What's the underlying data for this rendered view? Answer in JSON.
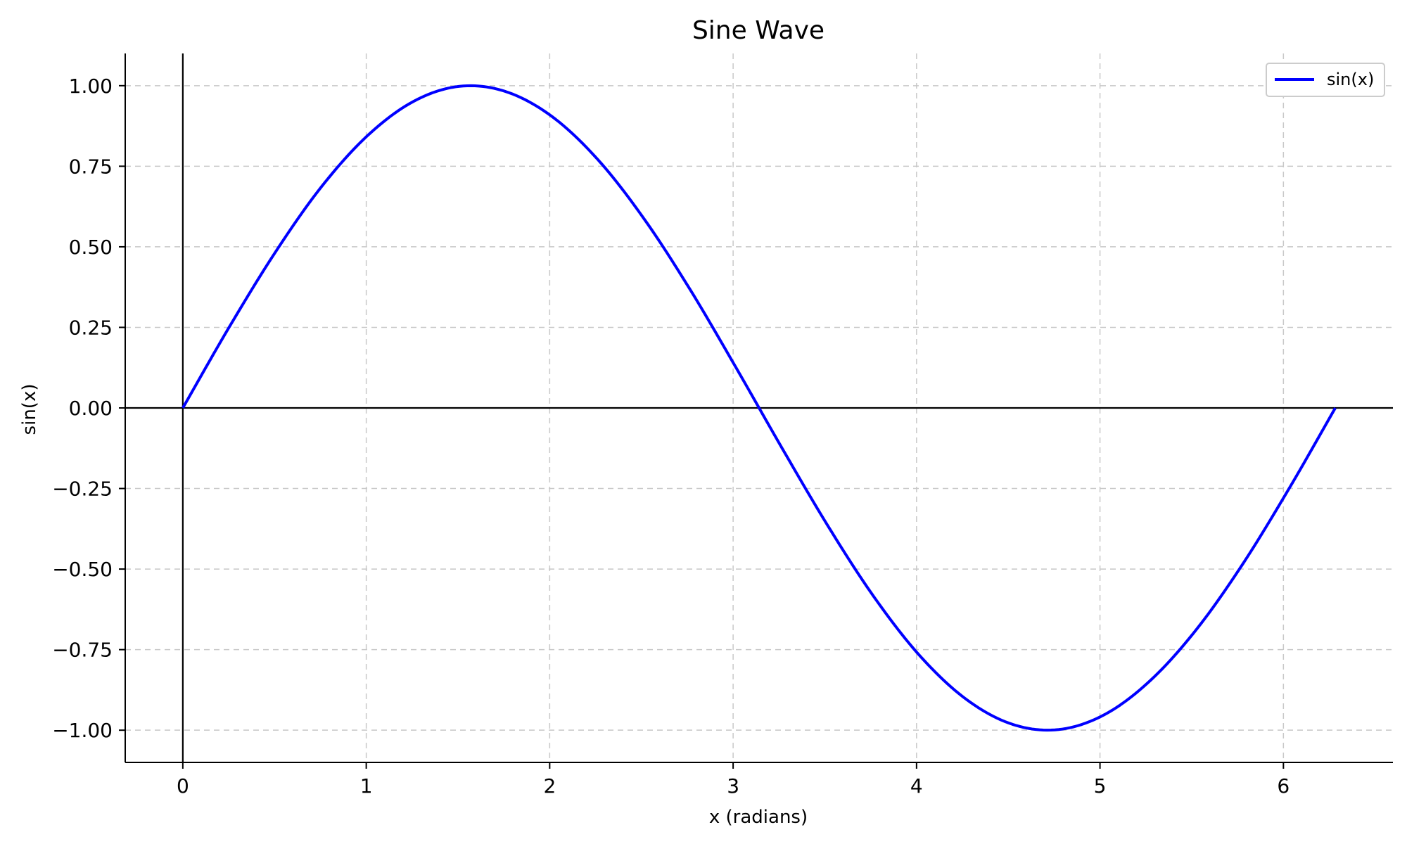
{
  "chart_data": {
    "type": "line",
    "title": "Sine Wave",
    "xlabel": "x (radians)",
    "ylabel": "sin(x)",
    "xlim": [
      -0.314,
      6.597
    ],
    "ylim": [
      -1.1,
      1.1
    ],
    "xticks": [
      0,
      1,
      2,
      3,
      4,
      5,
      6
    ],
    "xtick_labels": [
      "0",
      "1",
      "2",
      "3",
      "4",
      "5",
      "6"
    ],
    "yticks": [
      1.0,
      0.75,
      0.5,
      0.25,
      0.0,
      -0.25,
      -0.5,
      -0.75,
      -1.0
    ],
    "ytick_labels": [
      "1.00",
      "0.75",
      "0.50",
      "0.25",
      "0.00",
      "−0.25",
      "−0.50",
      "−0.75",
      "−1.00"
    ],
    "grid": true,
    "legend_position": "top-right",
    "series": [
      {
        "name": "sin(x)",
        "color": "#0000ff",
        "x": [
          0,
          0.251,
          0.503,
          0.754,
          1.005,
          1.257,
          1.508,
          1.759,
          2.011,
          2.262,
          2.513,
          2.765,
          3.016,
          3.267,
          3.519,
          3.77,
          4.021,
          4.273,
          4.524,
          4.775,
          5.027,
          5.278,
          5.529,
          5.781,
          6.032,
          6.283
        ],
        "y": [
          0,
          0.249,
          0.482,
          0.685,
          0.844,
          0.951,
          0.998,
          0.982,
          0.905,
          0.771,
          0.588,
          0.368,
          0.125,
          -0.125,
          -0.368,
          -0.588,
          -0.771,
          -0.905,
          -0.982,
          -0.998,
          -0.951,
          -0.844,
          -0.685,
          -0.482,
          -0.249,
          0
        ]
      }
    ],
    "reference_lines": {
      "horizontal_y": 0,
      "vertical_x": 0,
      "color": "#000000"
    }
  }
}
